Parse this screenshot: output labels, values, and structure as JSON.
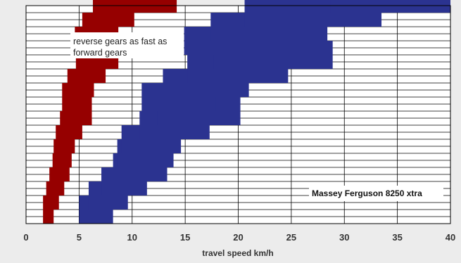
{
  "chart_data": {
    "type": "bar",
    "orientation": "horizontal-floating",
    "title": "",
    "xlabel": "travel speed km/h",
    "ylabel": "",
    "xlim": [
      0,
      40
    ],
    "x_ticks": [
      0,
      5,
      10,
      15,
      20,
      25,
      30,
      35,
      40
    ],
    "grid": "on",
    "legend_position": "bottom-right",
    "colors": {
      "reverse": "#960000",
      "forward": "#2b3390"
    },
    "series": [
      {
        "kind": "reverse",
        "bars": [
          [
            1.6,
            2.6
          ],
          [
            1.9,
            3.1
          ],
          [
            2.2,
            3.6
          ],
          [
            2.5,
            4.1
          ],
          [
            2.6,
            4.3
          ],
          [
            2.8,
            4.6
          ],
          [
            3.2,
            5.3
          ],
          [
            3.7,
            6.2
          ],
          [
            3.4,
            5.5
          ],
          [
            3.9,
            6.4
          ],
          [
            4.7,
            7.5
          ],
          [
            5.3,
            8.7
          ],
          [
            4.6,
            7.5
          ],
          [
            5.3,
            8.7
          ],
          [
            6.3,
            10.2
          ],
          [
            8.7,
            14.2
          ]
        ]
      },
      {
        "kind": "forward",
        "bars": [
          [
            5.0,
            8.2
          ],
          [
            5.9,
            9.6
          ],
          [
            7.1,
            11.4
          ],
          [
            8.2,
            13.3
          ],
          [
            8.6,
            13.9
          ],
          [
            9.0,
            14.6
          ],
          [
            10.7,
            17.3
          ],
          [
            12.4,
            20.2
          ],
          [
            10.9,
            17.9
          ],
          [
            12.9,
            21.0
          ],
          [
            15.2,
            24.7
          ],
          [
            17.7,
            28.9
          ],
          [
            14.9,
            24.3
          ],
          [
            17.4,
            28.4
          ],
          [
            20.6,
            33.5
          ],
          [
            28.7,
            40.2
          ]
        ]
      }
    ],
    "annotation": [
      "reverse gears as fast as",
      "forward gears"
    ],
    "legend_label": "Massey Ferguson 8250 xtra"
  }
}
